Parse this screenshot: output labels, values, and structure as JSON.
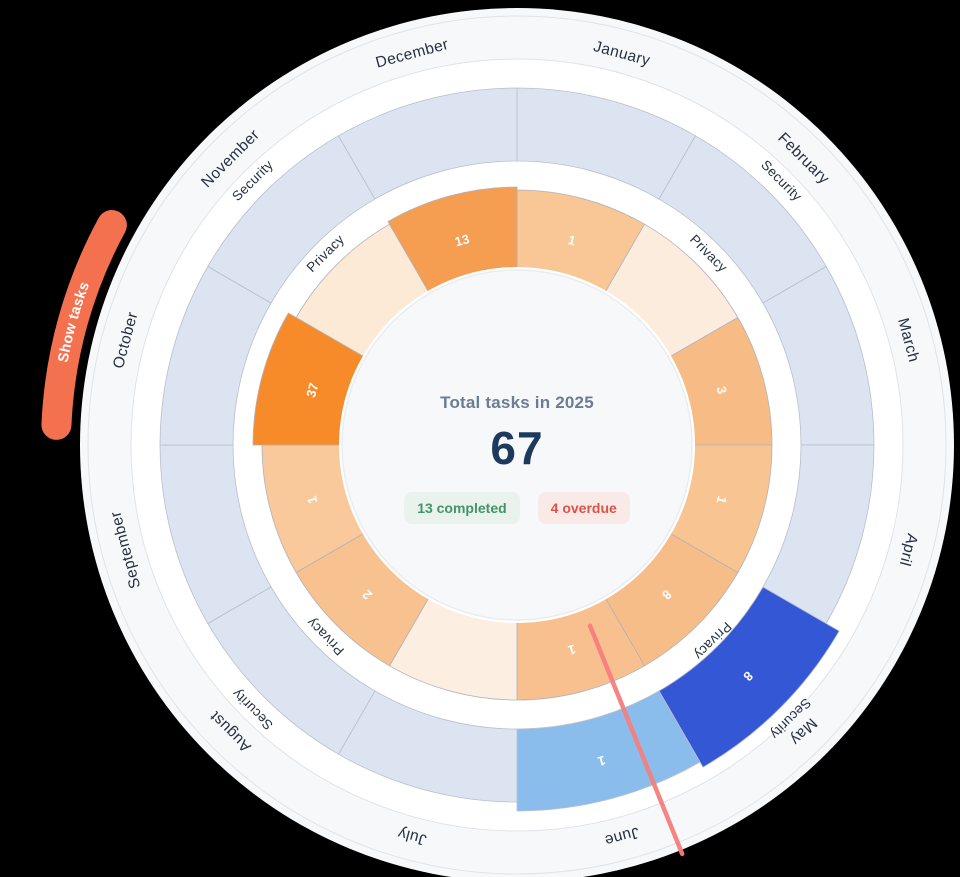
{
  "center": {
    "title": "Total tasks in 2025",
    "total": "67",
    "completed_badge": "13 completed",
    "overdue_badge": "4 overdue"
  },
  "controls": {
    "show_tasks_label": "Show tasks"
  },
  "chart_data": {
    "type": "radial-calendar-donut",
    "title": "Total tasks in 2025",
    "year": 2025,
    "total_tasks": 67,
    "completed": 13,
    "overdue": 4,
    "months": [
      "January",
      "February",
      "March",
      "April",
      "May",
      "June",
      "July",
      "August",
      "September",
      "October",
      "November",
      "December"
    ],
    "month_arc_deg": 30,
    "rings": [
      {
        "name": "Security",
        "position": "outer",
        "values": {
          "May": 8,
          "June": 1
        }
      },
      {
        "name": "Privacy",
        "position": "inner",
        "values": {
          "January": 1,
          "March": 3,
          "April": 1,
          "May": 8,
          "June": 1,
          "August": 2,
          "September": 1,
          "October": 37,
          "December": 13
        }
      }
    ],
    "ring_labels_at_deg": [
      45,
      135,
      225,
      315
    ],
    "marker": {
      "label": "current-date-marker",
      "month": "June",
      "angle_deg": 158
    },
    "legend_position": "center",
    "colors": {
      "page_bg": "#000000",
      "disc": "#f7f8fa",
      "gap": "#ffffff",
      "hairline": "#e0e3e7",
      "security_empty": "#dbe4f0",
      "security_filled": {
        "May": "#3457d5",
        "June": "#8bbdec"
      },
      "security_separator": "#b9bfcc",
      "privacy_by_month": {
        "January": "#f8c795",
        "February": "#fcecdd",
        "March": "#f7bc85",
        "April": "#f8c492",
        "May": "#f7bd89",
        "June": "#f7c08e",
        "July": "#fceee1",
        "August": "#f8c190",
        "September": "#f9c89b",
        "October": "#f78b29",
        "November": "#fcead7",
        "December": "#f59d50"
      },
      "privacy_separator": "#b2b2ba",
      "value_text": "#ffffff",
      "month_text": "#26303f",
      "ring_label_text": "#26303f",
      "center_bg": "#f7f8f9",
      "center_edge": "#eaedf0",
      "title_text": "#6b7c93",
      "total_text": "#1d3a5e",
      "completed_text": "#44936b",
      "completed_bg": "#e9f2ec",
      "overdue_text": "#d95548",
      "overdue_bg": "#faeae7",
      "marker": "#f57f7e",
      "show_tasks_bg": "#f3714f",
      "show_tasks_text": "#ffffff"
    }
  }
}
